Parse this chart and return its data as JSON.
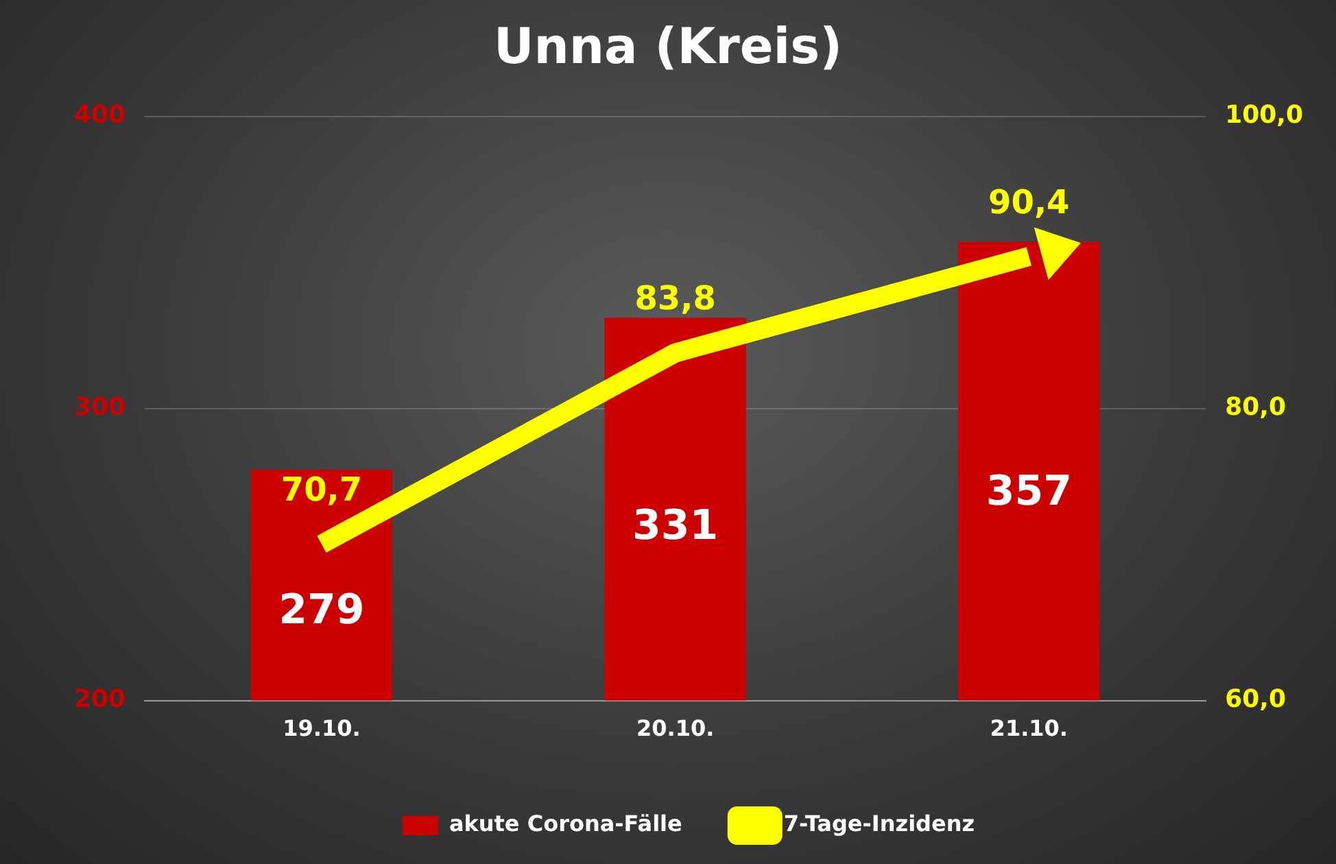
{
  "chart_data": {
    "type": "bar",
    "title": "Unna (Kreis)",
    "categories": [
      "19.10.",
      "20.10.",
      "21.10."
    ],
    "series": [
      {
        "name": "akute Corona-Fälle",
        "color": "#cc0000",
        "values": [
          279,
          331,
          357
        ],
        "value_labels": [
          "279",
          "331",
          "357"
        ]
      },
      {
        "name": "7-Tage-Inzidenz",
        "type": "line",
        "axis": "y2",
        "color": "#ffff00",
        "values": [
          70.7,
          83.8,
          90.4
        ],
        "value_labels": [
          "70,7",
          "83,8",
          "90,4"
        ]
      }
    ],
    "ylim": [
      200,
      400
    ],
    "yticks": [
      200,
      300,
      400
    ],
    "y2lim": [
      60,
      100
    ],
    "y2ticks": [
      {
        "value": 60,
        "label": "60,0"
      },
      {
        "value": 80,
        "label": "80,0"
      },
      {
        "value": 100,
        "label": "100,0"
      }
    ],
    "grid": "y",
    "legend": "bottom"
  }
}
